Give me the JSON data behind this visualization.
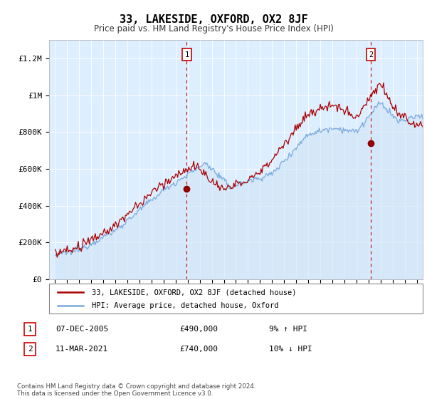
{
  "title": "33, LAKESIDE, OXFORD, OX2 8JF",
  "subtitle": "Price paid vs. HM Land Registry's House Price Index (HPI)",
  "ylabel_ticks": [
    "£0",
    "£200K",
    "£400K",
    "£600K",
    "£800K",
    "£1M",
    "£1.2M"
  ],
  "ytick_values": [
    0,
    200000,
    400000,
    600000,
    800000,
    1000000,
    1200000
  ],
  "ylim": [
    0,
    1300000
  ],
  "xlim_start": 1994.5,
  "xlim_end": 2025.5,
  "legend_line1": "33, LAKESIDE, OXFORD, OX2 8JF (detached house)",
  "legend_line2": "HPI: Average price, detached house, Oxford",
  "annotation1_label": "1",
  "annotation1_date": "07-DEC-2005",
  "annotation1_price": "£490,000",
  "annotation1_hpi": "9% ↑ HPI",
  "annotation2_label": "2",
  "annotation2_date": "11-MAR-2021",
  "annotation2_price": "£740,000",
  "annotation2_hpi": "10% ↓ HPI",
  "footnote": "Contains HM Land Registry data © Crown copyright and database right 2024.\nThis data is licensed under the Open Government Licence v3.0.",
  "price_color": "#aa0000",
  "hpi_color": "#7aaadd",
  "hpi_fill_color": "#d0e4f7",
  "vline_color": "#cc0000",
  "background_color": "#ffffff",
  "plot_bg_color": "#ddeeff",
  "grid_color": "#ffffff",
  "purchase1_x": 2005.92,
  "purchase1_y": 490000,
  "purchase2_x": 2021.19,
  "purchase2_y": 740000,
  "num_points": 372
}
